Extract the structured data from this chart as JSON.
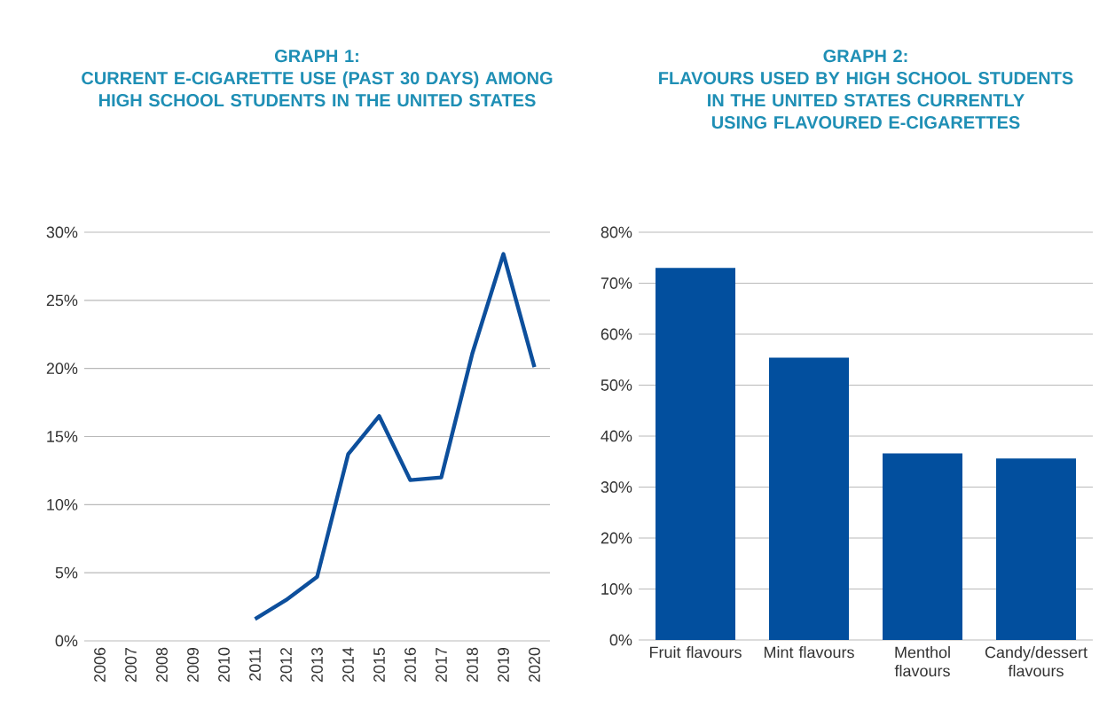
{
  "chart_data": [
    {
      "type": "line",
      "title": "GRAPH 1:",
      "subtitle": "CURRENT E-CIGARETTE USE (PAST 30 DAYS) AMONG HIGH SCHOOL STUDENTS IN THE UNITED STATES",
      "categories": [
        "2006",
        "2007",
        "2008",
        "2009",
        "2010",
        "2011",
        "2012",
        "2013",
        "2014",
        "2015",
        "2016",
        "2017",
        "2018",
        "2019",
        "2020"
      ],
      "values": [
        null,
        null,
        null,
        null,
        null,
        1.6,
        3.0,
        4.7,
        13.7,
        16.5,
        11.8,
        12.0,
        21.1,
        28.4,
        20.1
      ],
      "color": "#0d4f9c",
      "ylim": [
        0,
        30
      ],
      "yticks": [
        {
          "value": 0,
          "label": "0%"
        },
        {
          "value": 5,
          "label": "5%"
        },
        {
          "value": 10,
          "label": "10%"
        },
        {
          "value": 15,
          "label": "15%"
        },
        {
          "value": 20,
          "label": "20%"
        },
        {
          "value": 25,
          "label": "25%"
        },
        {
          "value": 30,
          "label": "30%"
        }
      ],
      "grid": "y"
    },
    {
      "type": "bar",
      "title": "GRAPH 2:",
      "subtitle": "FLAVOURS USED BY HIGH SCHOOL STUDENTS IN THE UNITED STATES CURRENTLY USING FLAVOURED E-CIGARETTES",
      "categories": [
        "Fruit flavours",
        "Mint flavours",
        "Menthol flavours",
        "Candy/dessert flavours"
      ],
      "values": [
        73.0,
        55.4,
        36.6,
        35.6
      ],
      "color": "#024f9e",
      "ylim": [
        0,
        80
      ],
      "yticks": [
        {
          "value": 0,
          "label": "0%"
        },
        {
          "value": 10,
          "label": "10%"
        },
        {
          "value": 20,
          "label": "20%"
        },
        {
          "value": 30,
          "label": "30%"
        },
        {
          "value": 40,
          "label": "40%"
        },
        {
          "value": 50,
          "label": "50%"
        },
        {
          "value": 60,
          "label": "60%"
        },
        {
          "value": 70,
          "label": "70%"
        },
        {
          "value": 80,
          "label": "80%"
        }
      ],
      "grid": "y"
    }
  ]
}
